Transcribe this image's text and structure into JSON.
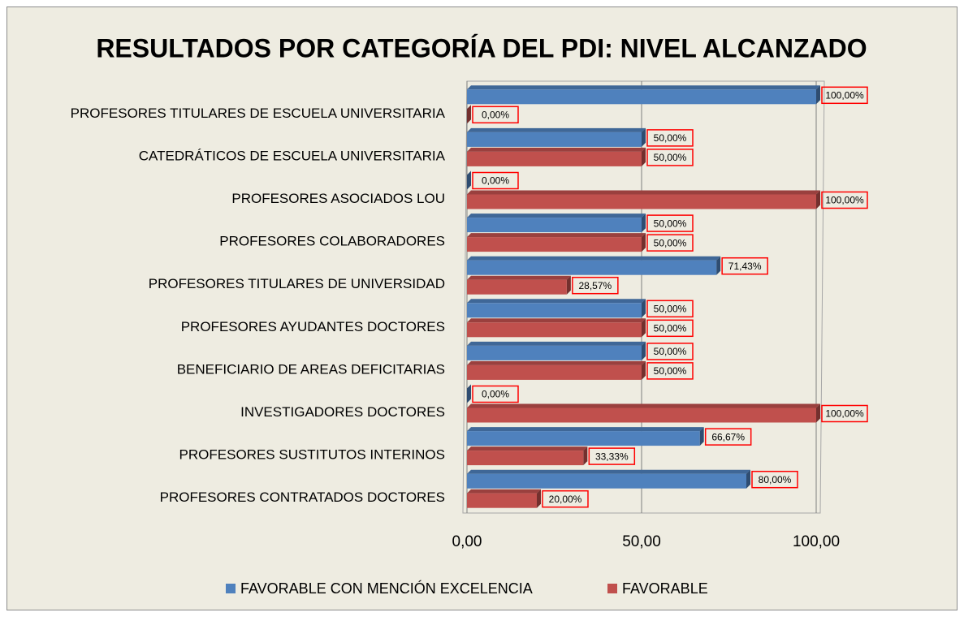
{
  "chart_data": {
    "type": "bar",
    "orientation": "horizontal",
    "title": "RESULTADOS POR CATEGORÍA DEL PDI: NIVEL ALCANZADO",
    "categories": [
      "PROFESORES TITULARES DE ESCUELA UNIVERSITARIA",
      "CATEDRÁTICOS DE ESCUELA UNIVERSITARIA",
      "PROFESORES ASOCIADOS LOU",
      "PROFESORES COLABORADORES",
      "PROFESORES TITULARES DE UNIVERSIDAD",
      "PROFESORES AYUDANTES DOCTORES",
      "BENEFICIARIO DE AREAS DEFICITARIAS",
      "INVESTIGADORES DOCTORES",
      "PROFESORES SUSTITUTOS INTERINOS",
      "PROFESORES CONTRATADOS DOCTORES"
    ],
    "series": [
      {
        "name": "FAVORABLE CON MENCIÓN EXCELENCIA",
        "color": "#4f81bd",
        "values": [
          100,
          50,
          0,
          50,
          71.43,
          50,
          50,
          0,
          66.67,
          80
        ],
        "value_labels": [
          "100,00%",
          "50,00%",
          "0,00%",
          "50,00%",
          "71,43%",
          "50,00%",
          "50,00%",
          "0,00%",
          "66,67%",
          "80,00%"
        ]
      },
      {
        "name": "FAVORABLE",
        "color": "#c0504d",
        "values": [
          0,
          50,
          100,
          50,
          28.57,
          50,
          50,
          100,
          33.33,
          20
        ],
        "value_labels": [
          "0,00%",
          "50,00%",
          "100,00%",
          "50,00%",
          "28,57%",
          "50,00%",
          "50,00%",
          "100,00%",
          "33,33%",
          "20,00%"
        ]
      }
    ],
    "xlim": [
      0,
      100
    ],
    "xticks": [
      {
        "value": 0,
        "label": "0,00"
      },
      {
        "value": 50,
        "label": "50,00"
      },
      {
        "value": 100,
        "label": "100,00"
      }
    ],
    "grid": true,
    "legend": "bottom"
  }
}
